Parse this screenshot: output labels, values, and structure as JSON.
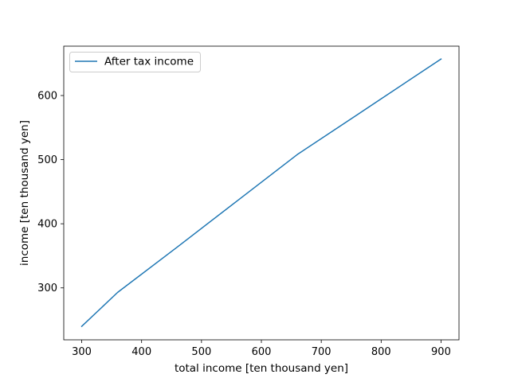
{
  "chart_data": {
    "type": "line",
    "xlabel": "total income [ten thousand yen]",
    "ylabel": "income [ten thousand yen]",
    "xlim": [
      270,
      930
    ],
    "ylim": [
      219,
      677
    ],
    "xticks": [
      300,
      400,
      500,
      600,
      700,
      800,
      900
    ],
    "yticks": [
      300,
      400,
      500,
      600
    ],
    "grid": false,
    "legend_position": "upper-left",
    "series": [
      {
        "name": "After tax income",
        "color": "#1f77b4",
        "x": [
          300,
          360,
          460,
          560,
          660,
          760,
          900
        ],
        "y": [
          240,
          293,
          364,
          436,
          508,
          570,
          657
        ]
      }
    ]
  }
}
